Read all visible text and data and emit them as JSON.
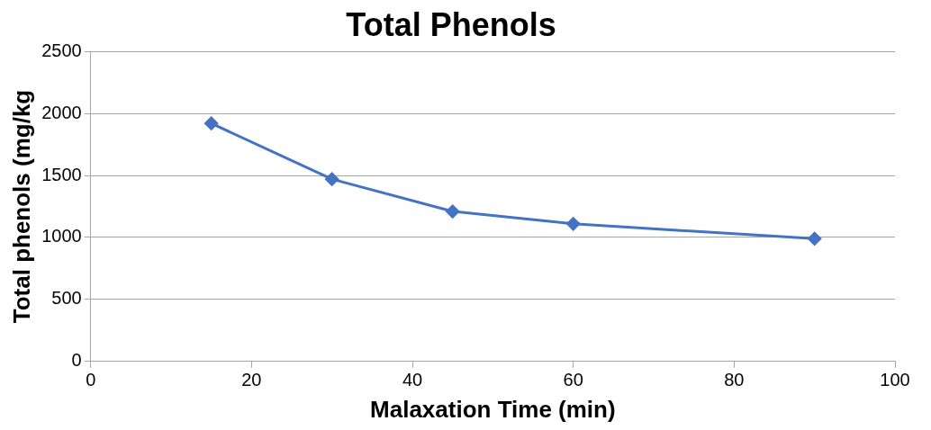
{
  "chart_data": {
    "type": "line",
    "title": "Total Phenols",
    "xlabel": "Malaxation Time (min)",
    "ylabel": "Total phenols (mg/kg",
    "x": [
      15,
      30,
      45,
      60,
      90
    ],
    "series": [
      {
        "color": "#4472c4",
        "values": [
          1920,
          1470,
          1210,
          1110,
          990
        ]
      }
    ],
    "xlim": [
      0,
      100
    ],
    "xticks": [
      0,
      20,
      40,
      60,
      80,
      100
    ],
    "ylim": [
      0,
      2500
    ],
    "yticks": [
      0,
      500,
      1000,
      1500,
      2000,
      2500
    ],
    "grid": "y",
    "legend": false,
    "marker": "diamond",
    "line_style": "solid"
  }
}
